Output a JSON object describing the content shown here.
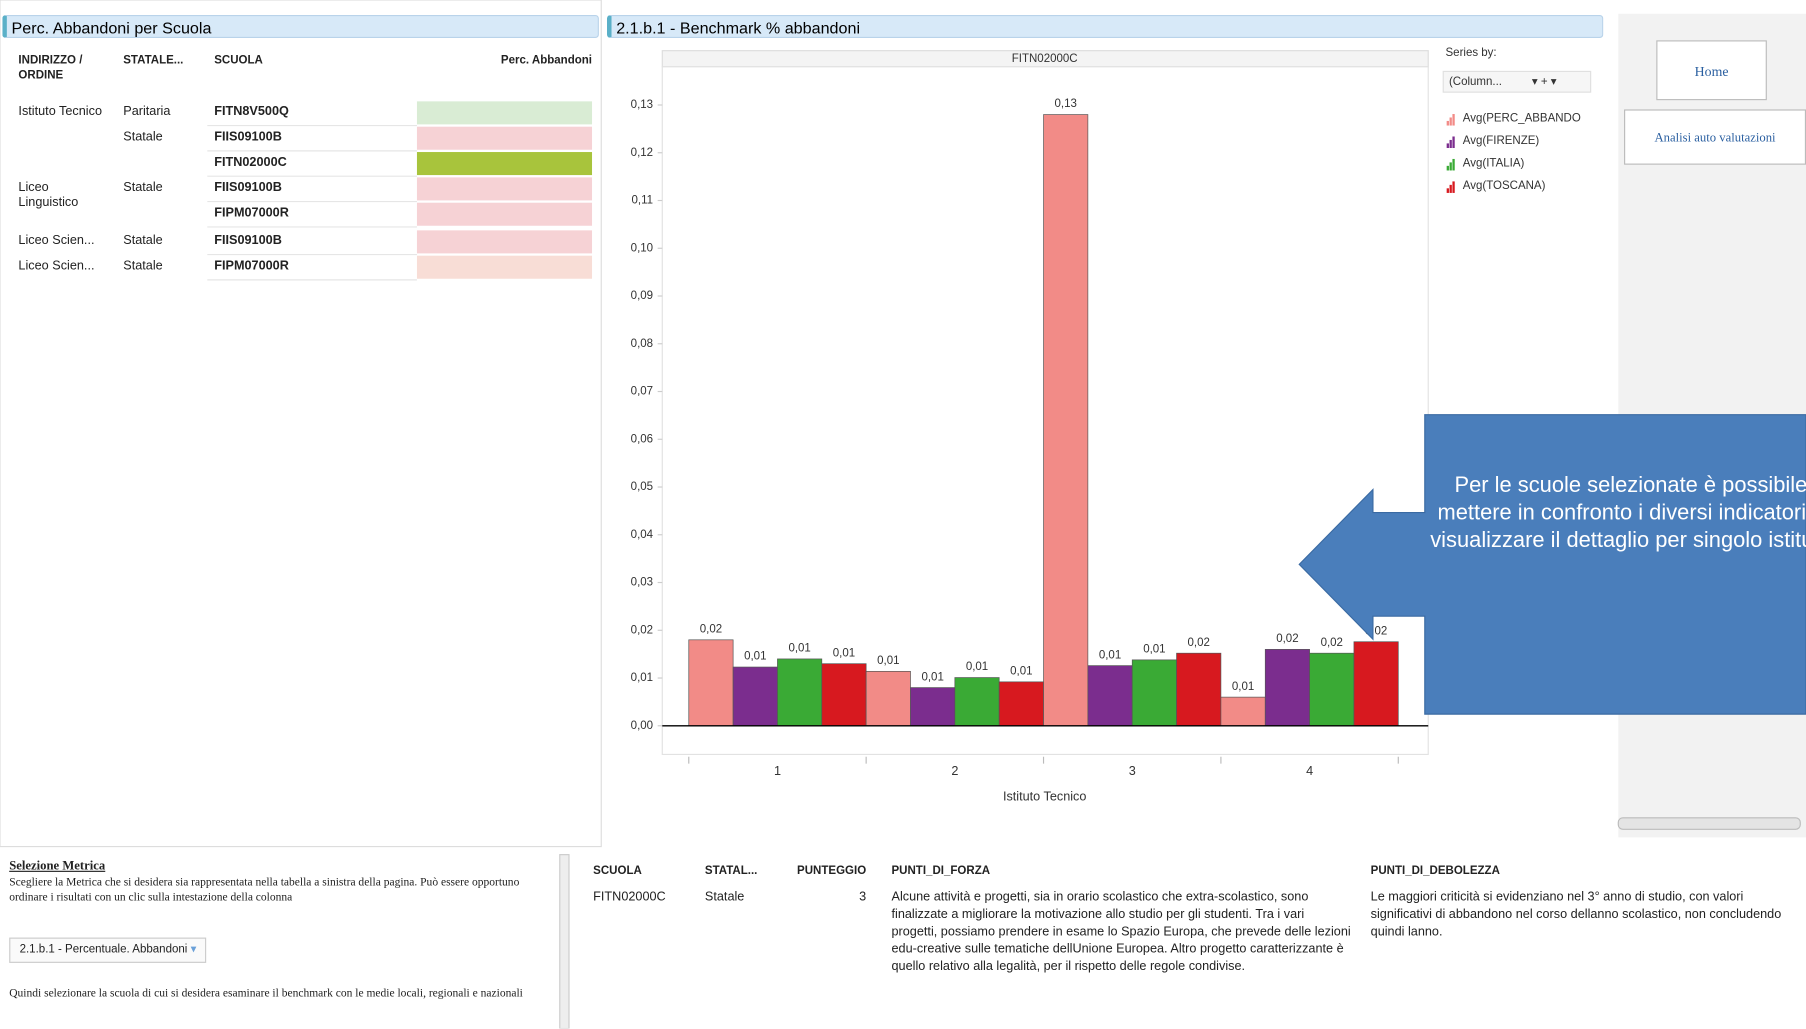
{
  "left_table": {
    "title": "Perc. Abbandoni per Scuola",
    "headers": [
      "INDIRIZZO / ORDINE",
      "STATALE...",
      "SCUOLA",
      "Perc. Abbandoni"
    ],
    "rows": [
      {
        "indirizzo": "Istituto Tecnico",
        "statale": "Paritaria",
        "scuola": "FITN8V500Q",
        "color": "#d9ecd4"
      },
      {
        "statale": "Statale",
        "scuola": "FIIS09100B",
        "color": "#f6d2d5"
      },
      {
        "scuola": "FITN02000C",
        "color": "#a8c43c"
      },
      {
        "indirizzo": "Liceo Linguistico",
        "statale": "Statale",
        "scuola": "FIIS09100B",
        "color": "#f6d2d5"
      },
      {
        "scuola": "FIPM07000R",
        "color": "#f6d2d5"
      },
      {
        "indirizzo": "Liceo Scien...",
        "statale": "Statale",
        "scuola": "FIIS09100B",
        "color": "#f6d2d5"
      },
      {
        "indirizzo": "Liceo Scien...",
        "statale": "Statale",
        "scuola": "FIPM07000R",
        "color": "#f8ddd6"
      }
    ]
  },
  "chart_data": {
    "type": "bar",
    "title": "2.1.b.1 - Benchmark % abbandoni",
    "panel": "FITN02000C",
    "x_label": "Istituto Tecnico",
    "legend_title": "Series by:",
    "legend_selector": "(Column...",
    "categories": [
      "1",
      "2",
      "3",
      "4"
    ],
    "series": [
      {
        "name": "Avg(PERC_ABBANDO",
        "color": "#f28b87",
        "values": [
          0.018,
          0.0114,
          0.128,
          0.006
        ],
        "value_labels": [
          "0,02",
          "0,01",
          "0,13",
          "0,01"
        ]
      },
      {
        "name": "Avg(FIRENZE)",
        "color": "#7b2d8e",
        "values": [
          0.0123,
          0.008,
          0.0126,
          0.016
        ],
        "value_labels": [
          "0,01",
          "0,01",
          "0,01",
          "0,02"
        ]
      },
      {
        "name": "Avg(ITALIA)",
        "color": "#3aaa35",
        "values": [
          0.014,
          0.0101,
          0.0138,
          0.0152
        ],
        "value_labels": [
          "0,01",
          "0,01",
          "0,01",
          "0,02"
        ]
      },
      {
        "name": "Avg(TOSCANA)",
        "color": "#d7191f",
        "values": [
          0.013,
          0.0092,
          0.0152,
          0.0176
        ],
        "value_labels": [
          "0,01",
          "0,01",
          "0,02",
          "0,02"
        ]
      }
    ],
    "ylim": [
      -0.006,
      0.138
    ],
    "yticks": [
      {
        "value": 0,
        "label": "0,00"
      },
      {
        "value": 0.01,
        "label": "0,01"
      },
      {
        "value": 0.02,
        "label": "0,02"
      },
      {
        "value": 0.03,
        "label": "0,03"
      },
      {
        "value": 0.04,
        "label": "0,04"
      },
      {
        "value": 0.05,
        "label": "0,05"
      },
      {
        "value": 0.06,
        "label": "0,06"
      },
      {
        "value": 0.07,
        "label": "0,07"
      },
      {
        "value": 0.08,
        "label": "0,08"
      },
      {
        "value": 0.09,
        "label": "0,09"
      },
      {
        "value": 0.1,
        "label": "0,10"
      },
      {
        "value": 0.11,
        "label": "0,11"
      },
      {
        "value": 0.12,
        "label": "0,12"
      },
      {
        "value": 0.13,
        "label": "0,13"
      }
    ],
    "grid": false
  },
  "nav": {
    "buttons": [
      "Home",
      "Analisi auto valutazioni"
    ]
  },
  "callout": "Per le scuole selezionate è possibile mettere in confronto i diversi indicatori e visualizzare il dettaglio per singolo istituto",
  "metric_panel": {
    "title": "Selezione Metrica",
    "text": "Scegliere la Metrica che si desidera sia rappresentata nella tabella a sinistra della pagina. Può essere opportuno ordinare i risultati con un clic sulla intestazione della colonna",
    "dropdown": "2.1.b.1 - Percentuale. Abbandoni",
    "text2": "Quindi selezionare la scuola di cui si desidera esaminare il benchmark con le medie locali, regionali e nazionali"
  },
  "detail_table": {
    "headers": [
      "SCUOLA",
      "STATAL...",
      "PUNTEGGIO",
      "PUNTI_DI_FORZA",
      "PUNTI_DI_DEBOLEZZA"
    ],
    "rows": [
      [
        "FITN02000C",
        "Statale",
        3,
        "Alcune attività e progetti, sia in orario scolastico che extra-scolastico, sono finalizzate a migliorare la motivazione allo studio per gli studenti. Tra i vari progetti, possiamo prendere in esame lo Spazio Europa, che prevede delle lezioni edu-creative sulle tematiche dellUnione Europea. Altro progetto caratterizzante è quello relativo alla legalità, per il rispetto delle regole condivise.",
        "Le maggiori criticità si evidenziano nel 3° anno di studio, con valori significativi di abbandono nel corso dellanno scolastico, non concludendo quindi lanno."
      ]
    ]
  }
}
